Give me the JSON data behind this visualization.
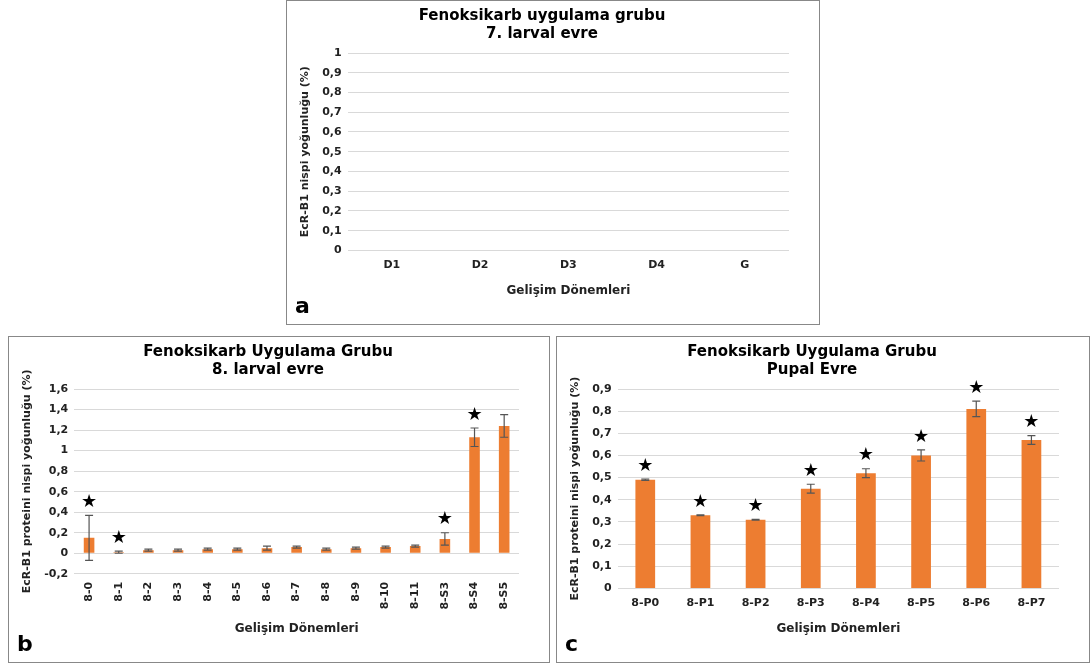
{
  "chart_data": [
    {
      "type": "bar",
      "title": "Fenoksikarb uygulama grubu",
      "subtitle": "7. larval evre",
      "xlabel": "Gelişim Dönemleri",
      "ylabel": "EcR-B1 nispi yoğunluğu (%)",
      "categories": [
        "D1",
        "D2",
        "D3",
        "D4",
        "G"
      ],
      "values": [
        0,
        0,
        0,
        0,
        0
      ],
      "color": "#ed7d31",
      "ylim": [
        0,
        1
      ],
      "yticks": [
        {
          "value": 0,
          "label": "0"
        },
        {
          "value": 0.1,
          "label": "0,1"
        },
        {
          "value": 0.2,
          "label": "0,2"
        },
        {
          "value": 0.3,
          "label": "0,3"
        },
        {
          "value": 0.4,
          "label": "0,4"
        },
        {
          "value": 0.5,
          "label": "0,5"
        },
        {
          "value": 0.6,
          "label": "0,6"
        },
        {
          "value": 0.7,
          "label": "0,7"
        },
        {
          "value": 0.8,
          "label": "0,8"
        },
        {
          "value": 0.9,
          "label": "0,9"
        },
        {
          "value": 1,
          "label": "1"
        }
      ],
      "grid": "y",
      "annotations": [
        "a"
      ]
    },
    {
      "type": "bar",
      "title": "Fenoksikarb Uygulama Grubu",
      "subtitle": "8. larval evre",
      "xlabel": "Gelişim Dönemleri",
      "ylabel": "EcR-B1 proteini nispi yoğunluğu (%)",
      "categories": [
        "8-0",
        "8-1",
        "8-2",
        "8-3",
        "8-4",
        "8-5",
        "8-6",
        "8-7",
        "8-8",
        "8-9",
        "8-10",
        "8-11",
        "8-S3",
        "8-S4",
        "8-S5"
      ],
      "values": [
        0.15,
        0.01,
        0.03,
        0.03,
        0.04,
        0.04,
        0.05,
        0.06,
        0.04,
        0.05,
        0.06,
        0.07,
        0.14,
        1.13,
        1.24
      ],
      "errors": [
        0.22,
        0.01,
        0.01,
        0.01,
        0.01,
        0.01,
        0.02,
        0.01,
        0.01,
        0.01,
        0.01,
        0.01,
        0.06,
        0.09,
        0.11
      ],
      "value_labels": [
        "★",
        "★",
        null,
        null,
        null,
        null,
        null,
        null,
        null,
        null,
        null,
        null,
        "★",
        "★",
        null
      ],
      "color": "#ed7d31",
      "ylim": [
        -0.2,
        1.6
      ],
      "yticks": [
        {
          "value": -0.2,
          "label": "-0,2"
        },
        {
          "value": 0,
          "label": "0"
        },
        {
          "value": 0.2,
          "label": "0,2"
        },
        {
          "value": 0.4,
          "label": "0,4"
        },
        {
          "value": 0.6,
          "label": "0,6"
        },
        {
          "value": 0.8,
          "label": "0,8"
        },
        {
          "value": 1,
          "label": "1"
        },
        {
          "value": 1.2,
          "label": "1,2"
        },
        {
          "value": 1.4,
          "label": "1,4"
        },
        {
          "value": 1.6,
          "label": "1,6"
        }
      ],
      "grid": "y",
      "annotations": [
        "b"
      ]
    },
    {
      "type": "bar",
      "title": "Fenoksikarb Uygulama Grubu",
      "subtitle": "Pupal Evre",
      "xlabel": "Gelişim Dönemleri",
      "ylabel": "EcR-B1 proteini nispi yoğunluğu (%)",
      "categories": [
        "8-P0",
        "8-P1",
        "8-P2",
        "8-P3",
        "8-P4",
        "8-P5",
        "8-P6",
        "8-P7"
      ],
      "values": [
        0.49,
        0.33,
        0.31,
        0.45,
        0.52,
        0.6,
        0.81,
        0.67
      ],
      "errors": [
        0.003,
        0.002,
        0.002,
        0.02,
        0.02,
        0.025,
        0.035,
        0.02
      ],
      "value_labels": [
        "★",
        "★",
        "★",
        "★",
        "★",
        "★",
        "★",
        "★"
      ],
      "color": "#ed7d31",
      "ylim": [
        0,
        0.9
      ],
      "yticks": [
        {
          "value": 0,
          "label": "0"
        },
        {
          "value": 0.1,
          "label": "0,1"
        },
        {
          "value": 0.2,
          "label": "0,2"
        },
        {
          "value": 0.3,
          "label": "0,3"
        },
        {
          "value": 0.4,
          "label": "0,4"
        },
        {
          "value": 0.5,
          "label": "0,5"
        },
        {
          "value": 0.6,
          "label": "0,6"
        },
        {
          "value": 0.7,
          "label": "0,7"
        },
        {
          "value": 0.8,
          "label": "0,8"
        },
        {
          "value": 0.9,
          "label": "0,9"
        }
      ],
      "grid": "y",
      "annotations": [
        "c"
      ]
    }
  ]
}
